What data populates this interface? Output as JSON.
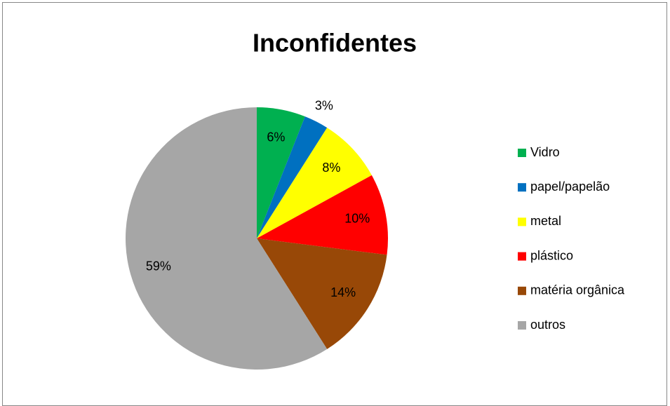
{
  "chart_data": {
    "type": "pie",
    "title": "Inconfidentes",
    "categories": [
      "Vidro",
      "papel/papelão",
      "metal",
      "plástico",
      "matéria orgânica",
      "outros"
    ],
    "values": [
      6,
      3,
      8,
      10,
      14,
      59
    ],
    "value_labels": [
      "6%",
      "3%",
      "8%",
      "10%",
      "14%",
      "59%"
    ],
    "colors": [
      "#00b050",
      "#0070c0",
      "#ffff00",
      "#ff0000",
      "#984807",
      "#a6a6a6"
    ],
    "legend": "right"
  }
}
